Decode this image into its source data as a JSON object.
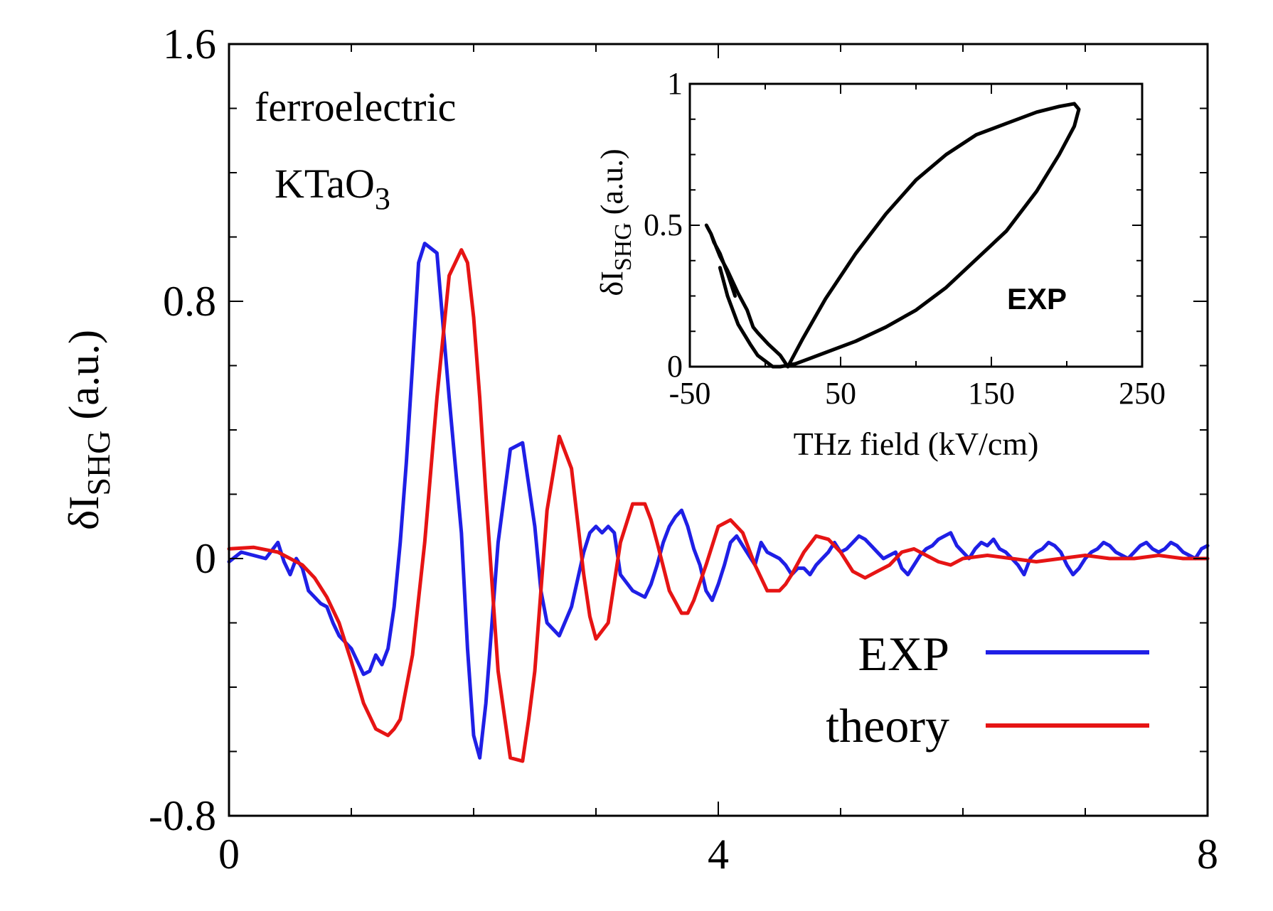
{
  "chart_data": [
    {
      "id": "main",
      "type": "line",
      "xlabel": "",
      "ylabel": {
        "prefix": "δI",
        "subscript": "SHG",
        "suffix": " (a.u.)"
      },
      "xlim": [
        0,
        8
      ],
      "ylim": [
        -0.8,
        1.6
      ],
      "xticks": [
        0,
        4,
        8
      ],
      "xtick_labels": [
        "0",
        "4",
        "8"
      ],
      "xminor": [
        1,
        2,
        3,
        5,
        6,
        7
      ],
      "yticks": [
        -0.8,
        0,
        0.8,
        1.6
      ],
      "ytick_labels": [
        "-0.8",
        "0",
        "0.8",
        "1.6"
      ],
      "yminor": [
        -0.6,
        -0.4,
        -0.2,
        0.2,
        0.4,
        0.6,
        1.0,
        1.2,
        1.4
      ],
      "annotations": {
        "line1": "ferroelectric",
        "line2_prefix": "KTaO",
        "line2_subscript": "3"
      },
      "legend": {
        "position": "bottom-right",
        "entries": [
          "EXP",
          "theory"
        ]
      },
      "series": [
        {
          "name": "EXP",
          "color": "#1f1fe6",
          "x": [
            0.0,
            0.1,
            0.2,
            0.3,
            0.4,
            0.45,
            0.5,
            0.55,
            0.6,
            0.65,
            0.7,
            0.75,
            0.8,
            0.85,
            0.9,
            0.95,
            1.0,
            1.05,
            1.1,
            1.15,
            1.2,
            1.25,
            1.3,
            1.35,
            1.4,
            1.45,
            1.5,
            1.55,
            1.6,
            1.7,
            1.8,
            1.9,
            1.95,
            2.0,
            2.05,
            2.1,
            2.2,
            2.3,
            2.4,
            2.5,
            2.55,
            2.6,
            2.7,
            2.8,
            2.9,
            2.95,
            3.0,
            3.05,
            3.1,
            3.15,
            3.2,
            3.3,
            3.4,
            3.45,
            3.5,
            3.55,
            3.6,
            3.65,
            3.7,
            3.75,
            3.8,
            3.85,
            3.9,
            3.95,
            4.0,
            4.05,
            4.1,
            4.15,
            4.2,
            4.25,
            4.3,
            4.35,
            4.4,
            4.45,
            4.5,
            4.55,
            4.6,
            4.65,
            4.7,
            4.75,
            4.8,
            4.85,
            4.9,
            4.95,
            5.0,
            5.05,
            5.1,
            5.15,
            5.2,
            5.25,
            5.3,
            5.35,
            5.4,
            5.45,
            5.5,
            5.55,
            5.6,
            5.65,
            5.7,
            5.75,
            5.8,
            5.85,
            5.9,
            5.95,
            6.0,
            6.05,
            6.1,
            6.15,
            6.2,
            6.25,
            6.3,
            6.35,
            6.4,
            6.45,
            6.5,
            6.55,
            6.6,
            6.65,
            6.7,
            6.75,
            6.8,
            6.85,
            6.9,
            6.95,
            7.0,
            7.05,
            7.1,
            7.15,
            7.2,
            7.25,
            7.3,
            7.35,
            7.4,
            7.45,
            7.5,
            7.55,
            7.6,
            7.65,
            7.7,
            7.75,
            7.8,
            7.85,
            7.9,
            7.95,
            8.0
          ],
          "y": [
            -0.01,
            0.02,
            0.01,
            0.0,
            0.05,
            -0.01,
            -0.05,
            0.0,
            -0.03,
            -0.1,
            -0.12,
            -0.14,
            -0.15,
            -0.2,
            -0.24,
            -0.26,
            -0.28,
            -0.32,
            -0.36,
            -0.35,
            -0.3,
            -0.33,
            -0.28,
            -0.15,
            0.05,
            0.3,
            0.6,
            0.92,
            0.98,
            0.95,
            0.5,
            0.08,
            -0.28,
            -0.55,
            -0.62,
            -0.45,
            0.05,
            0.34,
            0.36,
            0.1,
            -0.1,
            -0.2,
            -0.24,
            -0.15,
            0.02,
            0.08,
            0.1,
            0.08,
            0.1,
            0.08,
            -0.05,
            -0.1,
            -0.12,
            -0.08,
            -0.02,
            0.05,
            0.1,
            0.13,
            0.15,
            0.1,
            0.03,
            -0.02,
            -0.1,
            -0.13,
            -0.08,
            -0.02,
            0.05,
            0.07,
            0.04,
            0.01,
            -0.02,
            0.05,
            0.02,
            0.01,
            0.0,
            -0.02,
            -0.05,
            -0.03,
            -0.03,
            -0.05,
            -0.02,
            0.0,
            0.02,
            0.05,
            0.02,
            0.03,
            0.05,
            0.07,
            0.06,
            0.04,
            0.02,
            0.0,
            0.01,
            0.02,
            -0.03,
            -0.05,
            -0.02,
            0.01,
            0.03,
            0.04,
            0.06,
            0.07,
            0.08,
            0.04,
            0.02,
            0.0,
            0.03,
            0.05,
            0.04,
            0.06,
            0.03,
            0.02,
            0.0,
            -0.02,
            -0.05,
            0.0,
            0.02,
            0.03,
            0.05,
            0.04,
            0.02,
            -0.02,
            -0.05,
            -0.03,
            0.0,
            0.02,
            0.03,
            0.05,
            0.04,
            0.02,
            0.01,
            0.0,
            0.02,
            0.04,
            0.05,
            0.03,
            0.02,
            0.03,
            0.05,
            0.04,
            0.02,
            0.01,
            0.0,
            0.03,
            0.04
          ]
        },
        {
          "name": "theory",
          "color": "#e61414",
          "x": [
            0.0,
            0.2,
            0.4,
            0.6,
            0.7,
            0.8,
            0.9,
            1.0,
            1.1,
            1.2,
            1.3,
            1.35,
            1.4,
            1.5,
            1.6,
            1.7,
            1.8,
            1.9,
            1.95,
            2.0,
            2.05,
            2.1,
            2.2,
            2.3,
            2.4,
            2.45,
            2.5,
            2.6,
            2.7,
            2.8,
            2.9,
            2.95,
            3.0,
            3.1,
            3.2,
            3.3,
            3.4,
            3.45,
            3.5,
            3.6,
            3.7,
            3.75,
            3.8,
            3.9,
            4.0,
            4.1,
            4.2,
            4.3,
            4.4,
            4.5,
            4.55,
            4.6,
            4.7,
            4.8,
            4.9,
            5.0,
            5.1,
            5.2,
            5.3,
            5.4,
            5.5,
            5.6,
            5.7,
            5.8,
            5.9,
            6.0,
            6.2,
            6.4,
            6.6,
            6.8,
            7.0,
            7.2,
            7.4,
            7.6,
            7.8,
            8.0
          ],
          "y": [
            0.03,
            0.035,
            0.02,
            -0.02,
            -0.06,
            -0.12,
            -0.2,
            -0.32,
            -0.45,
            -0.53,
            -0.55,
            -0.53,
            -0.5,
            -0.3,
            0.05,
            0.5,
            0.88,
            0.96,
            0.92,
            0.75,
            0.5,
            0.2,
            -0.35,
            -0.62,
            -0.63,
            -0.5,
            -0.35,
            0.15,
            0.38,
            0.28,
            -0.05,
            -0.18,
            -0.25,
            -0.2,
            0.05,
            0.17,
            0.17,
            0.12,
            0.05,
            -0.1,
            -0.17,
            -0.17,
            -0.13,
            -0.02,
            0.1,
            0.12,
            0.08,
            -0.02,
            -0.1,
            -0.1,
            -0.08,
            -0.05,
            0.02,
            0.07,
            0.06,
            0.02,
            -0.04,
            -0.06,
            -0.04,
            -0.02,
            0.02,
            0.03,
            0.01,
            -0.01,
            -0.02,
            0.0,
            0.01,
            0.0,
            -0.01,
            0.0,
            0.01,
            0.0,
            0.0,
            0.01,
            0.0,
            0.0
          ]
        }
      ]
    },
    {
      "id": "inset",
      "type": "line",
      "xlabel": "THz field (kV/cm)",
      "ylabel": {
        "prefix": "δI",
        "subscript": "SHG",
        "suffix": " (a.u.)"
      },
      "xlim": [
        -50,
        250
      ],
      "ylim": [
        0,
        1
      ],
      "xticks": [
        -50,
        50,
        150,
        250
      ],
      "xtick_labels": [
        "-50",
        "50",
        "150",
        "250"
      ],
      "xminor": [
        0,
        100,
        200
      ],
      "yticks": [
        0,
        0.5,
        1
      ],
      "ytick_labels": [
        "0",
        "0.5",
        "1"
      ],
      "yminor": [
        0.125,
        0.25,
        0.375,
        0.625,
        0.75,
        0.875
      ],
      "annotation": "EXP",
      "series": [
        {
          "name": "EXP",
          "color": "#000000",
          "x": [
            -20,
            -25,
            -30,
            -34,
            -36,
            -38,
            -39,
            -38,
            -36,
            -33,
            -30,
            -25,
            -18,
            -12,
            -8,
            -5,
            2,
            10,
            15,
            25,
            40,
            60,
            80,
            100,
            120,
            140,
            160,
            180,
            195,
            205,
            208,
            205,
            195,
            180,
            160,
            140,
            120,
            100,
            80,
            60,
            40,
            30,
            20,
            10,
            5,
            -5,
            -10,
            -18,
            -25,
            -30
          ],
          "y": [
            0.25,
            0.33,
            0.4,
            0.44,
            0.47,
            0.49,
            0.5,
            0.49,
            0.47,
            0.43,
            0.39,
            0.34,
            0.26,
            0.2,
            0.14,
            0.12,
            0.08,
            0.04,
            0.0,
            0.1,
            0.24,
            0.4,
            0.54,
            0.66,
            0.75,
            0.82,
            0.86,
            0.9,
            0.92,
            0.93,
            0.91,
            0.85,
            0.75,
            0.62,
            0.48,
            0.38,
            0.28,
            0.2,
            0.14,
            0.09,
            0.05,
            0.03,
            0.01,
            0.0,
            0.0,
            0.04,
            0.08,
            0.15,
            0.25,
            0.35
          ]
        }
      ]
    }
  ]
}
